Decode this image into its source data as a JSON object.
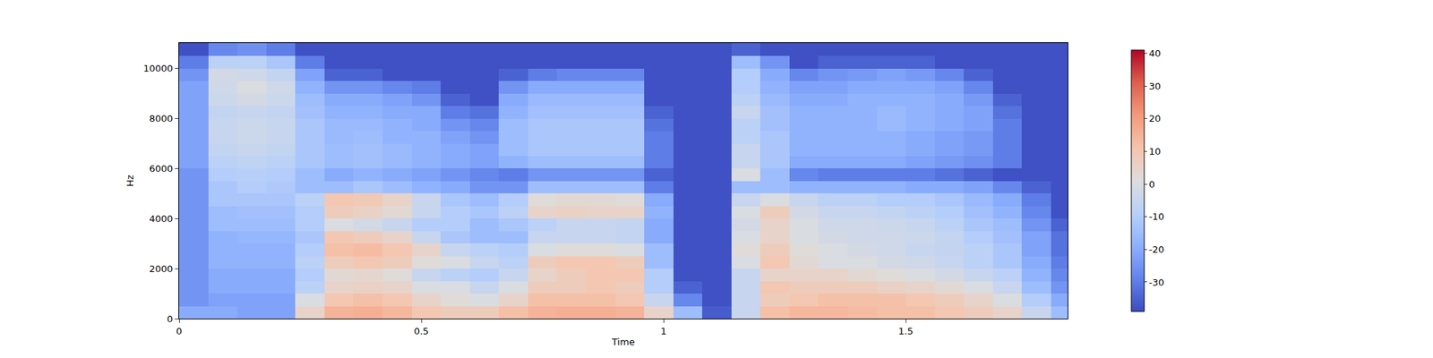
{
  "chart_data": {
    "type": "heatmap",
    "x_label": "Time",
    "y_label": "Hz",
    "x": [
      0,
      0.06,
      0.12,
      0.18,
      0.24,
      0.3,
      0.36,
      0.42,
      0.48,
      0.54,
      0.6,
      0.66,
      0.72,
      0.78,
      0.84,
      0.9,
      0.96,
      1.02,
      1.08,
      1.14,
      1.2,
      1.26,
      1.32,
      1.38,
      1.44,
      1.5,
      1.56,
      1.62,
      1.68,
      1.74,
      1.8,
      1.86
    ],
    "y": [
      0,
      500,
      1000,
      1500,
      2000,
      2500,
      3000,
      3500,
      4000,
      4500,
      5000,
      5500,
      6000,
      6500,
      7000,
      7500,
      8000,
      8500,
      9000,
      9500,
      10000,
      10500,
      11025
    ],
    "cells": [
      [
        -20,
        -25,
        -25,
        -25,
        -25,
        -25,
        -25,
        -25,
        -25,
        -25,
        -25,
        -25,
        -22,
        -22,
        -22,
        -22,
        -22,
        -22,
        -22,
        -25,
        -30,
        -38
      ],
      [
        -20,
        -22,
        -20,
        -20,
        -18,
        -18,
        -18,
        -15,
        -15,
        -12,
        -12,
        -10,
        -8,
        -6,
        -5,
        -5,
        -6,
        -4,
        -3,
        -2,
        -8,
        -28
      ],
      [
        -22,
        -22,
        -20,
        -20,
        -18,
        -18,
        -17,
        -15,
        -14,
        -12,
        -10,
        -9,
        -7,
        -5,
        -4,
        -4,
        -5,
        -2,
        0,
        -3,
        -8,
        -26
      ],
      [
        -22,
        -22,
        -20,
        -20,
        -18,
        -18,
        -17,
        -15,
        -14,
        -12,
        -11,
        -10,
        -8,
        -6,
        -5,
        -5,
        -6,
        -4,
        -3,
        -6,
        -12,
        -30
      ],
      [
        5,
        0,
        -8,
        -10,
        -8,
        -10,
        -12,
        -10,
        -10,
        -8,
        -15,
        -15,
        -12,
        -12,
        -12,
        -12,
        -14,
        -15,
        -18,
        -22,
        -30,
        -38
      ],
      [
        15,
        10,
        5,
        3,
        8,
        12,
        10,
        0,
        8,
        10,
        -15,
        -20,
        -15,
        -15,
        -16,
        -16,
        -18,
        -20,
        -25,
        -35,
        -38,
        -38
      ],
      [
        16,
        12,
        6,
        4,
        10,
        13,
        8,
        -2,
        6,
        9,
        -12,
        -18,
        -14,
        -14,
        -15,
        -16,
        -18,
        -20,
        -25,
        -35,
        -38,
        -38
      ],
      [
        14,
        10,
        5,
        2,
        8,
        10,
        5,
        -5,
        3,
        5,
        -15,
        -20,
        -16,
        -16,
        -18,
        -18,
        -20,
        -22,
        -28,
        -38,
        -38,
        -38
      ],
      [
        10,
        5,
        0,
        -5,
        2,
        5,
        -5,
        -10,
        -5,
        -5,
        -18,
        -22,
        -18,
        -18,
        -18,
        -20,
        -20,
        -25,
        -30,
        -38,
        -38,
        -38
      ],
      [
        8,
        2,
        0,
        -8,
        0,
        -5,
        -12,
        -10,
        -10,
        -12,
        -20,
        -25,
        -20,
        -20,
        -22,
        -25,
        -30,
        -35,
        -38,
        -38,
        -38,
        -38
      ],
      [
        8,
        0,
        -5,
        -10,
        -5,
        -8,
        -15,
        -15,
        -12,
        -15,
        -25,
        -28,
        -22,
        -22,
        -25,
        -28,
        -32,
        -38,
        -38,
        -38,
        -38,
        -38
      ],
      [
        12,
        5,
        0,
        -5,
        -8,
        -10,
        -15,
        -12,
        -8,
        -10,
        -25,
        -30,
        -18,
        -15,
        -15,
        -15,
        -18,
        -20,
        -25,
        -35,
        -38,
        -38
      ],
      [
        15,
        12,
        8,
        5,
        8,
        0,
        -5,
        -8,
        5,
        2,
        -15,
        -25,
        -15,
        -12,
        -12,
        -12,
        -14,
        -16,
        -20,
        -30,
        -38,
        -38
      ],
      [
        16,
        12,
        8,
        8,
        10,
        2,
        -5,
        -5,
        6,
        3,
        -15,
        -25,
        -15,
        -12,
        -12,
        -12,
        -14,
        -16,
        -20,
        -28,
        -38,
        -38
      ],
      [
        16,
        12,
        10,
        10,
        10,
        2,
        -5,
        -5,
        5,
        3,
        -15,
        -25,
        -15,
        -12,
        -12,
        -12,
        -14,
        -16,
        -20,
        -28,
        -38,
        -38
      ],
      [
        15,
        10,
        8,
        10,
        8,
        0,
        -6,
        -6,
        5,
        2,
        -15,
        -25,
        -15,
        -12,
        -12,
        -12,
        -14,
        -16,
        -20,
        -28,
        -38,
        -38
      ],
      [
        5,
        -5,
        -10,
        -10,
        -15,
        -15,
        -20,
        -20,
        -18,
        -20,
        -30,
        -35,
        -30,
        -30,
        -30,
        -32,
        -35,
        -38,
        -38,
        -38,
        -38,
        -38
      ],
      [
        -15,
        -28,
        -35,
        -38,
        -38,
        -38,
        -38,
        -38,
        -38,
        -38,
        -38,
        -38,
        -38,
        -38,
        -38,
        -38,
        -38,
        -38,
        -38,
        -38,
        -38,
        -38
      ],
      [
        -36,
        -38,
        -38,
        -38,
        -38,
        -38,
        -38,
        -38,
        -38,
        -38,
        -38,
        -38,
        -38,
        -38,
        -38,
        -38,
        -38,
        -38,
        -38,
        -38,
        -38,
        -38
      ],
      [
        -5,
        -5,
        -5,
        -5,
        0,
        2,
        0,
        -2,
        0,
        -5,
        -15,
        0,
        -5,
        -5,
        -8,
        -8,
        -5,
        -8,
        -10,
        -10,
        -15,
        -35
      ],
      [
        12,
        8,
        10,
        5,
        10,
        8,
        5,
        5,
        8,
        0,
        -15,
        -15,
        -12,
        -12,
        -12,
        -14,
        -14,
        -16,
        -18,
        -20,
        -25,
        -38
      ],
      [
        14,
        10,
        8,
        5,
        3,
        2,
        0,
        0,
        -2,
        -5,
        -18,
        -28,
        -20,
        -18,
        -18,
        -18,
        -18,
        -20,
        -22,
        -28,
        -38,
        -38
      ],
      [
        14,
        12,
        8,
        5,
        0,
        0,
        -2,
        -3,
        -5,
        -8,
        -18,
        -30,
        -20,
        -18,
        -18,
        -18,
        -18,
        -20,
        -22,
        -25,
        -35,
        -38
      ],
      [
        13,
        12,
        8,
        3,
        0,
        -2,
        -3,
        -3,
        -5,
        -8,
        -18,
        -30,
        -20,
        -18,
        -18,
        -18,
        -18,
        -18,
        -20,
        -24,
        -35,
        -38
      ],
      [
        12,
        12,
        6,
        2,
        -2,
        -3,
        -3,
        -4,
        -6,
        -10,
        -18,
        -30,
        -20,
        -18,
        -18,
        -16,
        -16,
        -18,
        -20,
        -22,
        -35,
        -38
      ],
      [
        12,
        10,
        5,
        0,
        -3,
        -5,
        -4,
        -5,
        -8,
        -10,
        -20,
        -30,
        -22,
        -20,
        -20,
        -18,
        -18,
        -18,
        -20,
        -24,
        -35,
        -38
      ],
      [
        10,
        8,
        3,
        -2,
        -5,
        -6,
        -6,
        -8,
        -10,
        -12,
        -20,
        -32,
        -24,
        -22,
        -22,
        -20,
        -20,
        -20,
        -22,
        -28,
        -38,
        -38
      ],
      [
        8,
        5,
        0,
        -5,
        -8,
        -8,
        -10,
        -12,
        -14,
        -16,
        -22,
        -35,
        -26,
        -24,
        -24,
        -22,
        -22,
        -24,
        -28,
        -35,
        -38,
        -38
      ],
      [
        5,
        0,
        -5,
        -8,
        -12,
        -12,
        -14,
        -15,
        -18,
        -20,
        -28,
        -38,
        -30,
        -30,
        -30,
        -30,
        -32,
        -35,
        -38,
        -38,
        -38,
        -38
      ],
      [
        -5,
        -10,
        -15,
        -18,
        -20,
        -22,
        -22,
        -25,
        -28,
        -30,
        -35,
        -38,
        -38,
        -38,
        -38,
        -38,
        -38,
        -38,
        -38,
        -38,
        -38,
        -38
      ],
      [
        -15,
        -20,
        -25,
        -28,
        -30,
        -32,
        -32,
        -35,
        -38,
        -38,
        -38,
        -38,
        -38,
        -38,
        -38,
        -38,
        -38,
        -38,
        -38,
        -38,
        -38,
        -38
      ]
    ],
    "xlim": [
      0,
      1.834
    ],
    "ylim": [
      0,
      11025
    ],
    "xticks": [
      0,
      0.5,
      1,
      1.5
    ],
    "yticks": [
      0,
      2000,
      4000,
      6000,
      8000,
      10000
    ],
    "colorbar": {
      "range": [
        -39,
        41
      ],
      "ticks": [
        -30,
        -20,
        -10,
        0,
        10,
        20,
        30,
        40
      ]
    }
  }
}
